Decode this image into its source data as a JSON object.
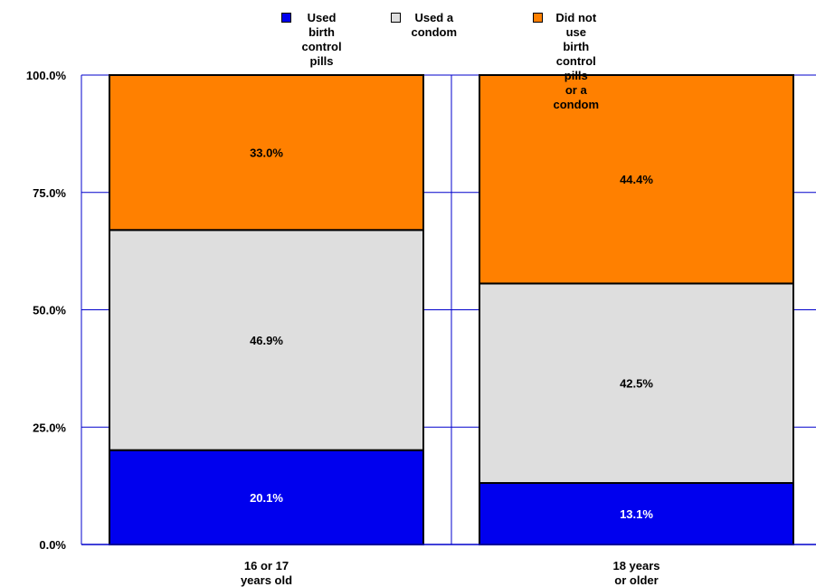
{
  "chart_data": {
    "type": "bar",
    "stacked": true,
    "percent": true,
    "categories": [
      "16 or 17\nyears old",
      "18 years\nor older"
    ],
    "series": [
      {
        "name": "Used birth\ncontrol pills",
        "values": [
          20.1,
          13.1
        ],
        "color": "#0000ee"
      },
      {
        "name": "Used a condom",
        "values": [
          46.9,
          42.5
        ],
        "color": "#dedede"
      },
      {
        "name": "Did not use\nbirth control pills\nor a condom",
        "values": [
          33.0,
          44.4
        ],
        "color": "#ff8000"
      }
    ],
    "data_labels": [
      [
        "20.1%",
        "13.1%"
      ],
      [
        "46.9%",
        "42.5%"
      ],
      [
        "33.0%",
        "44.4%"
      ]
    ],
    "y_ticks": [
      "0.0%",
      "25.0%",
      "50.0%",
      "75.0%",
      "100.0%"
    ],
    "ylim": [
      0,
      100
    ],
    "grid": true,
    "grid_color": "#0000cc",
    "legend_position": "top",
    "title": "",
    "xlabel": "",
    "ylabel": ""
  }
}
